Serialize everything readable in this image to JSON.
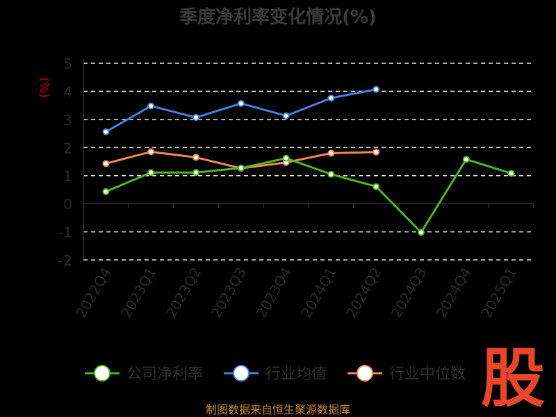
{
  "chart_data": {
    "type": "line",
    "title": "季度净利率变化情况(%)",
    "ylabel": "(%)",
    "ylim": [
      -2,
      5
    ],
    "yticks": [
      -2,
      -1,
      0,
      1,
      2,
      3,
      4,
      5
    ],
    "grid": "horizontal-dashed",
    "legend": "bottom",
    "categories": [
      "2022Q4",
      "2023Q1",
      "2023Q2",
      "2023Q3",
      "2023Q4",
      "2024Q1",
      "2024Q2",
      "2024Q3",
      "2024Q4",
      "2025Q1"
    ],
    "series": [
      {
        "name": "公司净利率",
        "color": "#4fb81c",
        "values": [
          0.43,
          1.11,
          1.11,
          1.27,
          1.62,
          1.05,
          0.61,
          -1.02,
          1.58,
          1.08
        ]
      },
      {
        "name": "行业均值",
        "color": "#4a7fe0",
        "values": [
          2.56,
          3.48,
          3.07,
          3.57,
          3.13,
          3.76,
          4.07,
          null,
          null,
          null
        ]
      },
      {
        "name": "行业中位数",
        "color": "#f5875a",
        "values": [
          1.43,
          1.85,
          1.65,
          1.26,
          1.47,
          1.8,
          1.84,
          null,
          null,
          null
        ]
      }
    ]
  },
  "footer": {
    "source": "制图数据来自恒生聚源数据库",
    "logo_text": "股"
  }
}
